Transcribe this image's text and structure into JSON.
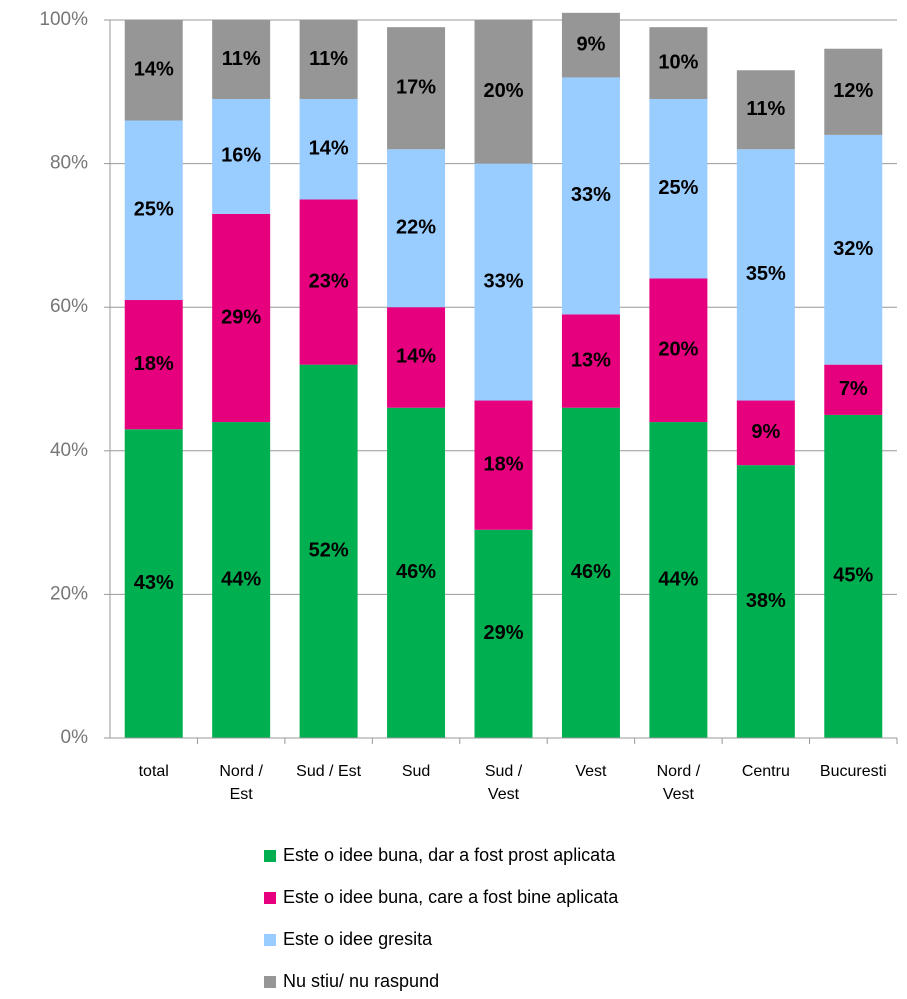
{
  "chart_data": {
    "type": "stacked_bar",
    "categories": [
      "total",
      "Nord /\nEst",
      "Sud / Est",
      "Sud",
      "Sud /\nVest",
      "Vest",
      "Nord /\nVest",
      "Centru",
      "Bucuresti"
    ],
    "series": [
      {
        "name": "Este o idee buna, dar a fost prost aplicata",
        "color": "#00b050",
        "values": [
          43,
          44,
          52,
          46,
          29,
          46,
          44,
          38,
          45
        ],
        "value_labels": [
          "43%",
          "44%",
          "52%",
          "46%",
          "29%",
          "46%",
          "44%",
          "38%",
          "45%"
        ]
      },
      {
        "name": "Este o idee buna, care a fost bine aplicata",
        "color": "#e6007e",
        "values": [
          18,
          29,
          23,
          14,
          18,
          13,
          20,
          9,
          7
        ],
        "value_labels": [
          "18%",
          "29%",
          "23%",
          "14%",
          "18%",
          "13%",
          "20%",
          "9%",
          "7%"
        ]
      },
      {
        "name": "Este o idee gresita",
        "color": "#99ccff",
        "values": [
          25,
          16,
          14,
          22,
          33,
          33,
          25,
          35,
          32
        ],
        "value_labels": [
          "25%",
          "16%",
          "14%",
          "22%",
          "33%",
          "33%",
          "25%",
          "35%",
          "32%"
        ]
      },
      {
        "name": "Nu stiu/ nu raspund",
        "color": "#969696",
        "values": [
          14,
          11,
          11,
          17,
          20,
          9,
          10,
          11,
          12
        ],
        "value_labels": [
          "14%",
          "11%",
          "11%",
          "17%",
          "20%",
          "9%",
          "10%",
          "11%",
          "12%"
        ]
      }
    ],
    "ylim": [
      0,
      100
    ],
    "yticks": [
      {
        "value": 0,
        "label": "0%"
      },
      {
        "value": 20,
        "label": "20%"
      },
      {
        "value": 40,
        "label": "40%"
      },
      {
        "value": 60,
        "label": "60%"
      },
      {
        "value": 80,
        "label": "80%"
      },
      {
        "value": 100,
        "label": "100%"
      }
    ],
    "grid": true
  }
}
